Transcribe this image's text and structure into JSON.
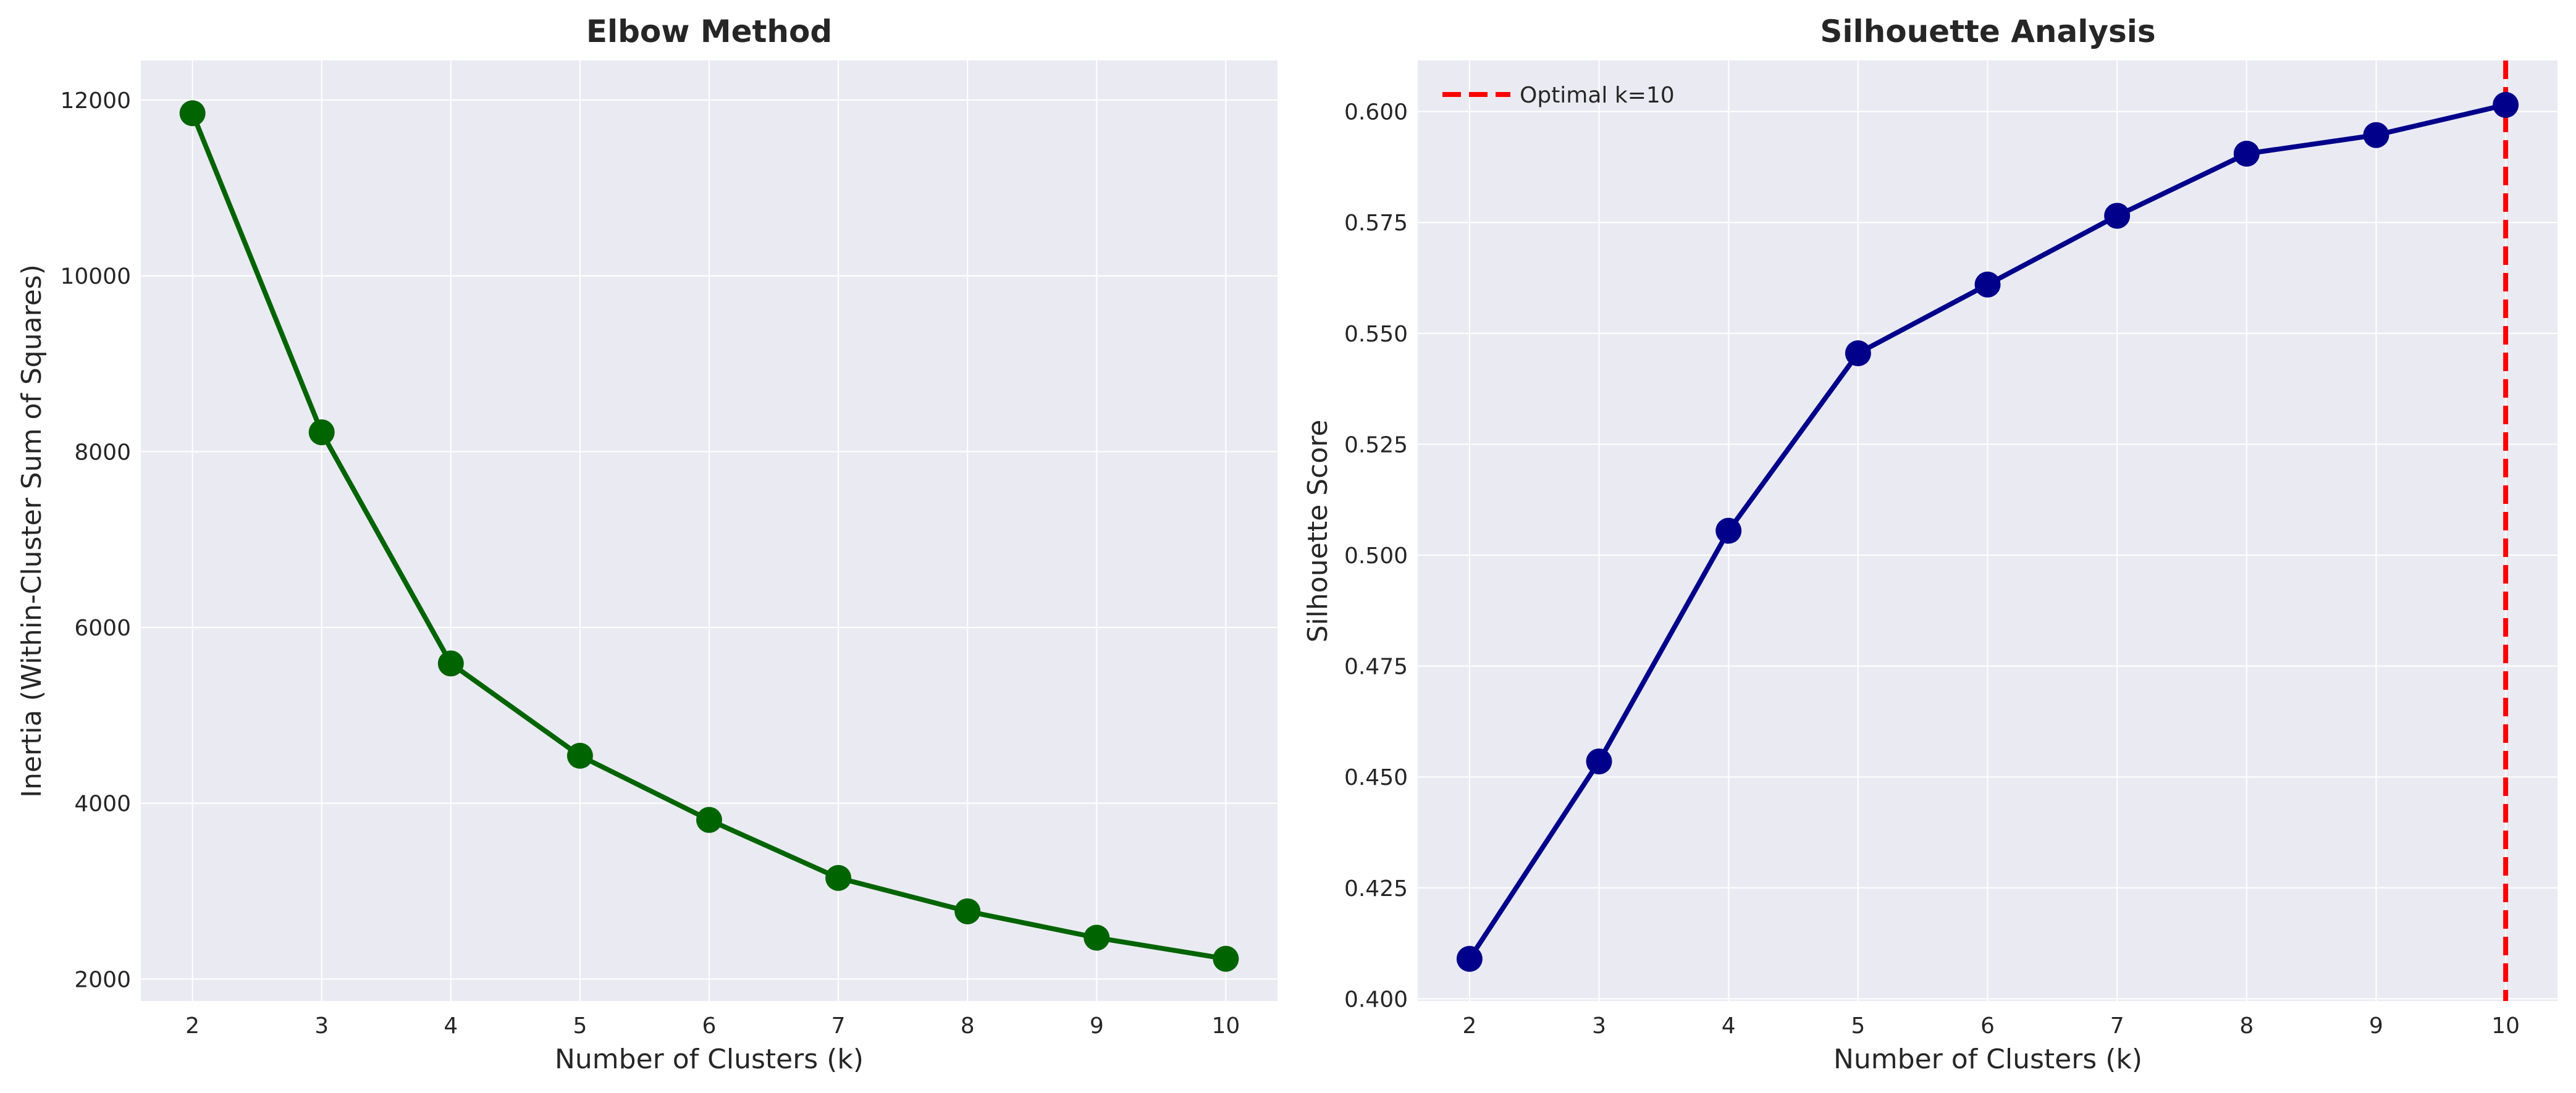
{
  "chart_data": [
    {
      "type": "line",
      "title": "Elbow Method",
      "xlabel": "Number of Clusters (k)",
      "ylabel": "Inertia (Within-Cluster Sum of Squares)",
      "x": [
        2,
        3,
        4,
        5,
        6,
        7,
        8,
        9,
        10
      ],
      "xlim": [
        1.6,
        10.4
      ],
      "ylim": [
        1750,
        12450
      ],
      "xticks": [
        2,
        3,
        4,
        5,
        6,
        7,
        8,
        9,
        10
      ],
      "yticks": [
        2000,
        4000,
        6000,
        8000,
        10000,
        12000
      ],
      "grid": true,
      "series": [
        {
          "values": [
            11850,
            8220,
            5590,
            4540,
            3810,
            3150,
            2770,
            2470,
            2230
          ],
          "color": "#006400",
          "marker": "circle"
        }
      ]
    },
    {
      "type": "line",
      "title": "Silhouette Analysis",
      "xlabel": "Number of Clusters (k)",
      "ylabel": "Silhouette Score",
      "x": [
        2,
        3,
        4,
        5,
        6,
        7,
        8,
        9,
        10
      ],
      "xlim": [
        1.6,
        10.4
      ],
      "ylim": [
        0.3995,
        0.6115
      ],
      "xticks": [
        2,
        3,
        4,
        5,
        6,
        7,
        8,
        9,
        10
      ],
      "yticks": [
        0.4,
        0.425,
        0.45,
        0.475,
        0.5,
        0.525,
        0.55,
        0.575,
        0.6
      ],
      "ytick_labels": [
        "0.400",
        "0.425",
        "0.450",
        "0.475",
        "0.500",
        "0.525",
        "0.550",
        "0.575",
        "0.600"
      ],
      "grid": true,
      "legend": {
        "position": "top-left",
        "entries": [
          "Optimal k=10"
        ]
      },
      "series": [
        {
          "values": [
            0.409,
            0.4535,
            0.5055,
            0.5455,
            0.561,
            0.5765,
            0.5905,
            0.5947,
            0.6015
          ],
          "color": "#00008B",
          "marker": "circle"
        }
      ],
      "reference_lines": [
        {
          "orientation": "vertical",
          "x": 10,
          "label": "Optimal k=10",
          "color": "#FF0000",
          "style": "dashed"
        }
      ]
    }
  ]
}
